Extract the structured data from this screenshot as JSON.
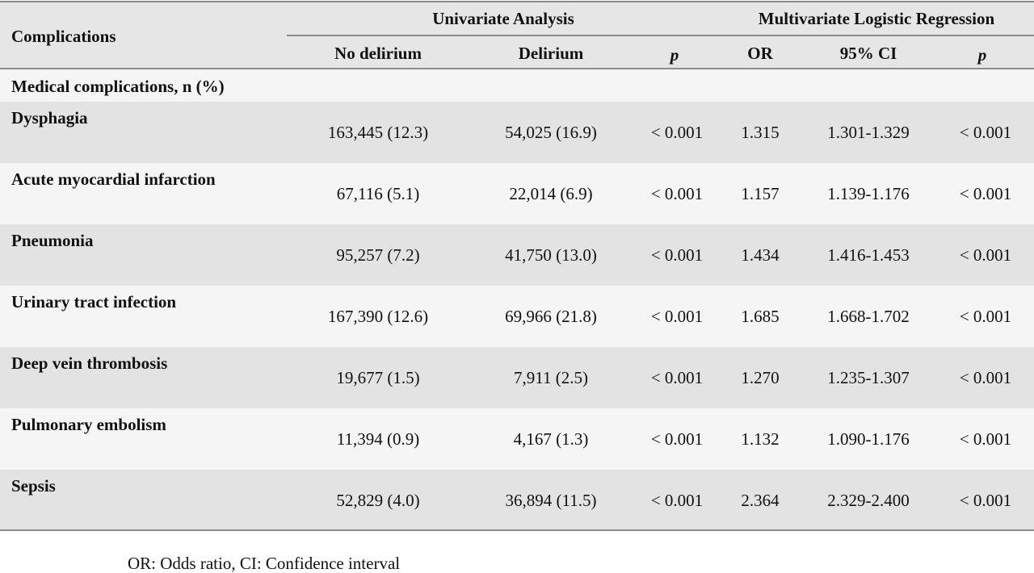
{
  "header": {
    "complications": "Complications",
    "univariate": "Univariate Analysis",
    "multivariate": "Multivariate Logistic Regression",
    "cols": [
      "No delirium",
      "Delirium",
      "p",
      "OR",
      "95% CI",
      "p"
    ]
  },
  "section_label": "Medical complications, n (%)",
  "rows": [
    {
      "name": "Dysphagia",
      "no_delirium": "163,445 (12.3)",
      "delirium": "54,025 (16.9)",
      "p_uni": "< 0.001",
      "or": "1.315",
      "ci": "1.301-1.329",
      "p_multi": "< 0.001"
    },
    {
      "name": "Acute myocardial infarction",
      "no_delirium": "67,116 (5.1)",
      "delirium": "22,014 (6.9)",
      "p_uni": "< 0.001",
      "or": "1.157",
      "ci": "1.139-1.176",
      "p_multi": "< 0.001"
    },
    {
      "name": "Pneumonia",
      "no_delirium": "95,257 (7.2)",
      "delirium": "41,750 (13.0)",
      "p_uni": "< 0.001",
      "or": "1.434",
      "ci": "1.416-1.453",
      "p_multi": "< 0.001"
    },
    {
      "name": "Urinary tract infection",
      "no_delirium": "167,390 (12.6)",
      "delirium": "69,966 (21.8)",
      "p_uni": "< 0.001",
      "or": "1.685",
      "ci": "1.668-1.702",
      "p_multi": "< 0.001"
    },
    {
      "name": "Deep vein thrombosis",
      "no_delirium": "19,677 (1.5)",
      "delirium": "7,911 (2.5)",
      "p_uni": "< 0.001",
      "or": "1.270",
      "ci": "1.235-1.307",
      "p_multi": "< 0.001"
    },
    {
      "name": "Pulmonary embolism",
      "no_delirium": "11,394 (0.9)",
      "delirium": "4,167 (1.3)",
      "p_uni": "< 0.001",
      "or": "1.132",
      "ci": "1.090-1.176",
      "p_multi": "< 0.001"
    },
    {
      "name": "Sepsis",
      "no_delirium": "52,829 (4.0)",
      "delirium": "36,894 (11.5)",
      "p_uni": "< 0.001",
      "or": "2.364",
      "ci": "2.329-2.400",
      "p_multi": "< 0.001"
    }
  ],
  "footnote": "OR: Odds ratio, CI: Confidence interval",
  "colors": {
    "header_bg": "#e6e6e6",
    "band_dark": "#e3e3e3",
    "band_light": "#f5f5f5",
    "rule": "#8c8c8c"
  }
}
